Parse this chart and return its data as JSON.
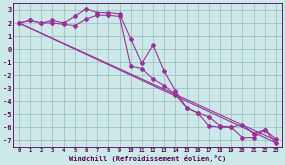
{
  "x": [
    0,
    1,
    2,
    3,
    4,
    5,
    6,
    7,
    8,
    9,
    10,
    11,
    12,
    13,
    14,
    15,
    16,
    17,
    18,
    19,
    20,
    21,
    22,
    23
  ],
  "line1": [
    2.0,
    2.2,
    2.0,
    2.2,
    2.0,
    2.5,
    3.1,
    2.8,
    2.8,
    2.7,
    0.8,
    -1.1,
    0.3,
    -1.7,
    -3.2,
    -4.5,
    -4.9,
    -5.9,
    -6.0,
    -6.0,
    -5.8,
    -6.5,
    -6.2,
    -6.9
  ],
  "line2": [
    2.0,
    2.2,
    2.0,
    2.0,
    1.9,
    1.8,
    2.3,
    2.6,
    2.6,
    2.5,
    -1.3,
    -1.5,
    -2.3,
    -2.8,
    -3.5,
    -4.5,
    -4.9,
    -5.2,
    -5.9,
    -6.0,
    -6.8,
    -6.8,
    -6.2,
    -7.2
  ],
  "line3_x": [
    0,
    23
  ],
  "line3": [
    2.0,
    -7.0
  ],
  "line4_x": [
    0,
    23
  ],
  "line4": [
    2.0,
    -7.2
  ],
  "color": "#993399",
  "bg_color": "#cce8e8",
  "grid_color": "#99bbbb",
  "xlabel": "Windchill (Refroidissement éolien,°C)",
  "ylim": [
    -7.5,
    3.5
  ],
  "xlim": [
    -0.5,
    23.5
  ],
  "yticks": [
    3,
    2,
    1,
    0,
    -1,
    -2,
    -3,
    -4,
    -5,
    -6,
    -7
  ],
  "xticks": [
    0,
    1,
    2,
    3,
    4,
    5,
    6,
    7,
    8,
    9,
    10,
    11,
    12,
    13,
    14,
    15,
    16,
    17,
    18,
    19,
    20,
    21,
    22,
    23
  ]
}
